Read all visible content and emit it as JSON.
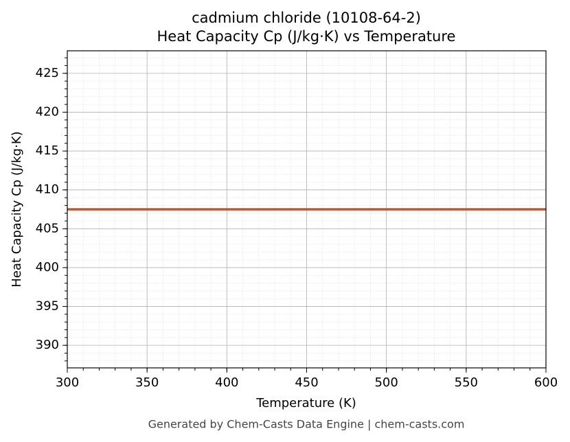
{
  "chart_data": {
    "type": "line",
    "title": "cadmium chloride (10108-64-2)",
    "subtitle": "Heat Capacity Cp (J/kg·K) vs Temperature",
    "x_label": "Temperature (K)",
    "y_label": "Heat Capacity Cp (J/kg·K)",
    "x": [
      300,
      600
    ],
    "series": [
      {
        "name": "Heat Capacity Cp",
        "color": "#c8532a",
        "values": [
          407.5,
          407.5
        ]
      }
    ],
    "xlim": [
      300,
      600
    ],
    "xticks": [
      300,
      350,
      400,
      450,
      500,
      550,
      600
    ],
    "ylim": [
      387.1,
      427.9
    ],
    "yticks": [
      390,
      395,
      400,
      405,
      410,
      415,
      420,
      425
    ],
    "grid": true,
    "minor_grid": true
  },
  "footer": "Generated by Chem-Casts Data Engine | chem-casts.com"
}
